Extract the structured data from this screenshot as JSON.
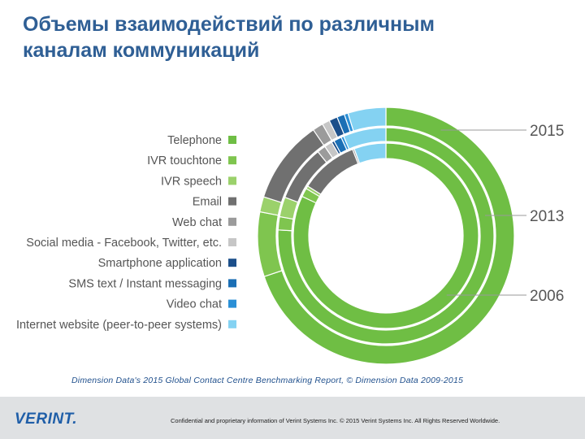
{
  "slide": {
    "title_line1": "Объемы взаимодействий по различным",
    "title_line2": "каналам коммуникаций"
  },
  "source_note": "Dimension Data's 2015 Global Contact Centre Benchmarking Report, © Dimension Data 2009-2015",
  "footer": {
    "logo": "VERINT.",
    "text": "Confidential and proprietary information of Verint Systems Inc. © 2015 Verint Systems Inc. All Rights Reserved Worldwide."
  },
  "chart_data": {
    "type": "donut",
    "title": "",
    "categories": [
      "Telephone",
      "IVR touchtone",
      "IVR speech",
      "Email",
      "Web chat",
      "Social media - Facebook, Twitter, etc.",
      "Smartphone application",
      "SMS text / Instant messaging",
      "Video chat",
      "Internet website (peer-to-peer systems)"
    ],
    "colors": [
      "#6fbe44",
      "#7fc54f",
      "#9bd16b",
      "#707070",
      "#9b9b9b",
      "#c6c6c6",
      "#1c4f8a",
      "#1b6fb5",
      "#2a8fd6",
      "#84d2f2"
    ],
    "series": [
      {
        "name": "2015",
        "values": [
          73.0,
          8.5,
          2.0,
          11.0,
          1.4,
          1.0,
          1.1,
          1.0,
          0.5,
          5.0
        ]
      },
      {
        "name": "2013",
        "values": [
          77.0,
          2.0,
          3.0,
          8.5,
          1.3,
          1.2,
          0.4,
          1.2,
          0.4,
          6.5
        ]
      },
      {
        "name": "2006",
        "values": [
          81.0,
          1.5,
          0.5,
          10.0,
          0.3,
          0.0,
          0.0,
          0.0,
          0.0,
          5.5
        ]
      }
    ],
    "legend_position": "left"
  }
}
